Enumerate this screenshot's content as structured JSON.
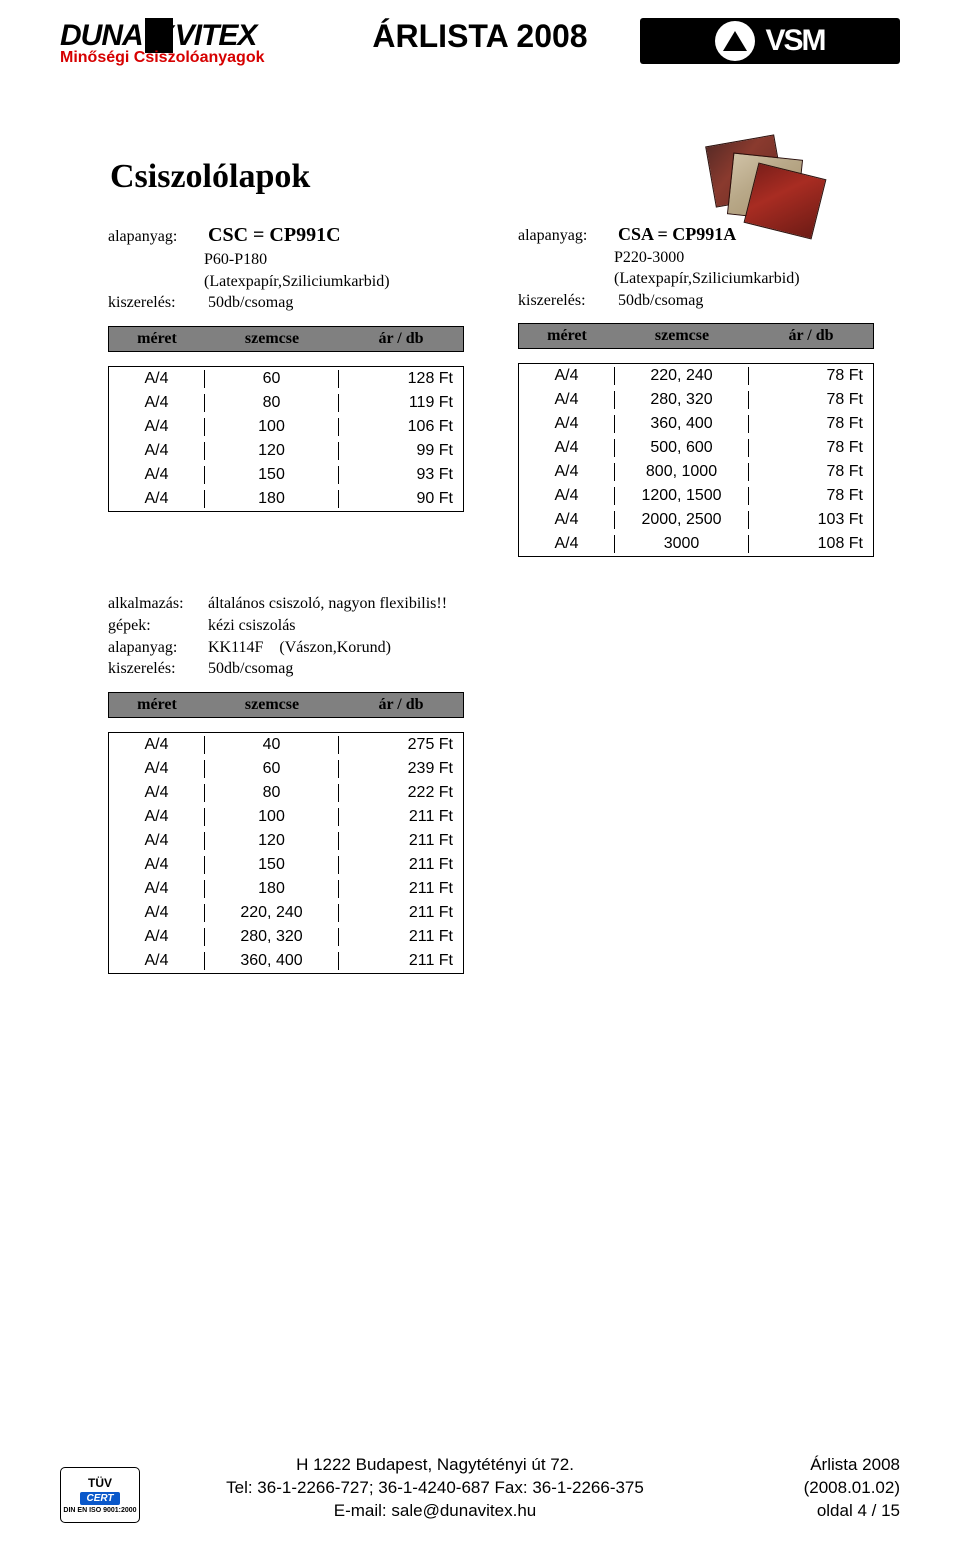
{
  "header": {
    "brand_main": "DUNA",
    "brand_sub": "VITEX",
    "brand_tri": "▽",
    "tagline": "Minőségi Csiszolóanyagok",
    "page_title": "ÁRLISTA 2008",
    "vsm": "VSM"
  },
  "section_title": "Csiszolólapok",
  "col_left": {
    "material_label": "alapanyag:",
    "material_value": "CSC = CP991C",
    "range": "P60-P180",
    "material_note": "(Latexpapír,Sziliciumkarbid)",
    "pack_label": "kiszerelés:",
    "pack_value": "50db/csomag",
    "head_size": "méret",
    "head_grain": "szemcse",
    "head_price": "ár / db",
    "rows": [
      {
        "size": "A/4",
        "grain": "60",
        "price": "128 Ft"
      },
      {
        "size": "A/4",
        "grain": "80",
        "price": "119 Ft"
      },
      {
        "size": "A/4",
        "grain": "100",
        "price": "106 Ft"
      },
      {
        "size": "A/4",
        "grain": "120",
        "price": "99 Ft"
      },
      {
        "size": "A/4",
        "grain": "150",
        "price": "93 Ft"
      },
      {
        "size": "A/4",
        "grain": "180",
        "price": "90 Ft"
      }
    ]
  },
  "col_right": {
    "material_label": "alapanyag:",
    "material_value": "CSA = CP991A",
    "range": "P220-3000",
    "material_note": "(Latexpapír,Sziliciumkarbid)",
    "pack_label": "kiszerelés:",
    "pack_value": "50db/csomag",
    "head_size": "méret",
    "head_grain": "szemcse",
    "head_price": "ár / db",
    "rows": [
      {
        "size": "A/4",
        "grain": "220, 240",
        "price": "78 Ft"
      },
      {
        "size": "A/4",
        "grain": "280, 320",
        "price": "78 Ft"
      },
      {
        "size": "A/4",
        "grain": "360, 400",
        "price": "78 Ft"
      },
      {
        "size": "A/4",
        "grain": "500, 600",
        "price": "78 Ft"
      },
      {
        "size": "A/4",
        "grain": "800, 1000",
        "price": "78 Ft"
      },
      {
        "size": "A/4",
        "grain": "1200, 1500",
        "price": "78 Ft"
      },
      {
        "size": "A/4",
        "grain": "2000, 2500",
        "price": "103 Ft"
      },
      {
        "size": "A/4",
        "grain": "3000",
        "price": "108 Ft"
      }
    ]
  },
  "block2": {
    "app_label": "alkalmazás:",
    "app_value": "általános csiszoló, nagyon flexibilis!!",
    "machine_label": "gépek:",
    "machine_value": "kézi csiszolás",
    "material_label": "alapanyag:",
    "material_value": "KK114F",
    "material_note": "(Vászon,Korund)",
    "pack_label": "kiszerelés:",
    "pack_value": "50db/csomag",
    "head_size": "méret",
    "head_grain": "szemcse",
    "head_price": "ár / db",
    "rows": [
      {
        "size": "A/4",
        "grain": "40",
        "price": "275 Ft"
      },
      {
        "size": "A/4",
        "grain": "60",
        "price": "239 Ft"
      },
      {
        "size": "A/4",
        "grain": "80",
        "price": "222 Ft"
      },
      {
        "size": "A/4",
        "grain": "100",
        "price": "211 Ft"
      },
      {
        "size": "A/4",
        "grain": "120",
        "price": "211 Ft"
      },
      {
        "size": "A/4",
        "grain": "150",
        "price": "211 Ft"
      },
      {
        "size": "A/4",
        "grain": "180",
        "price": "211 Ft"
      },
      {
        "size": "A/4",
        "grain": "220, 240",
        "price": "211 Ft"
      },
      {
        "size": "A/4",
        "grain": "280, 320",
        "price": "211 Ft"
      },
      {
        "size": "A/4",
        "grain": "360, 400",
        "price": "211 Ft"
      }
    ]
  },
  "footer": {
    "tuv_top": "TÜV",
    "tuv_cert": "CERT",
    "tuv_iso": "DIN EN ISO 9001:2000",
    "addr": "H 1222 Budapest, Nagytétényi út 72.",
    "phone": "Tel: 36-1-2266-727; 36-1-4240-687  Fax: 36-1-2266-375",
    "email": "E-mail: sale@dunavitex.hu",
    "r1": "Árlista 2008",
    "r2": "(2008.01.02)",
    "r3": "oldal 4   /  15"
  }
}
